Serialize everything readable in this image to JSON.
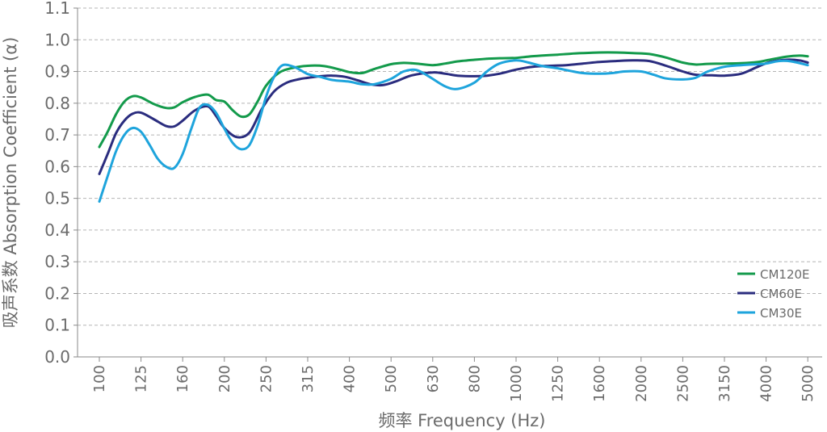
{
  "chart_data": {
    "type": "line",
    "xlabel": "频率 Frequency (Hz)",
    "ylabel": "吸声系数 Absorption Coefficient (α)",
    "x_categories": [
      "100",
      "125",
      "160",
      "200",
      "250",
      "315",
      "400",
      "500",
      "630",
      "800",
      "1000",
      "1250",
      "1600",
      "2000",
      "2500",
      "3150",
      "4000",
      "5000"
    ],
    "yticks": [
      "0.0",
      "0.1",
      "0.2",
      "0.3",
      "0.4",
      "0.5",
      "0.6",
      "0.7",
      "0.8",
      "0.9",
      "1.0",
      "1.1"
    ],
    "ylim": [
      0.0,
      1.1
    ],
    "grid": "horizontal-dashed",
    "legend_position": "right",
    "series": [
      {
        "name": "CM120E",
        "color": "#139a4b",
        "x": [
          0,
          0.2,
          0.4,
          0.6,
          0.8,
          1,
          1.3,
          1.6,
          1.8,
          2,
          2.3,
          2.6,
          2.8,
          3,
          3.2,
          3.4,
          3.6,
          3.8,
          4,
          4.3,
          4.6,
          5,
          5.4,
          5.8,
          6,
          6.3,
          6.6,
          7,
          7.3,
          7.6,
          8,
          8.3,
          8.6,
          9,
          9.3,
          9.6,
          10,
          10.3,
          10.6,
          11,
          11.3,
          11.6,
          12,
          12.4,
          12.8,
          13.2,
          13.6,
          14,
          14.3,
          14.6,
          15,
          15.4,
          15.8,
          16,
          16.2,
          16.5,
          16.8,
          17
        ],
        "values": [
          0.662,
          0.71,
          0.765,
          0.805,
          0.822,
          0.818,
          0.798,
          0.785,
          0.787,
          0.803,
          0.82,
          0.827,
          0.81,
          0.805,
          0.778,
          0.758,
          0.765,
          0.806,
          0.855,
          0.895,
          0.91,
          0.918,
          0.917,
          0.905,
          0.898,
          0.895,
          0.908,
          0.923,
          0.927,
          0.925,
          0.92,
          0.925,
          0.932,
          0.937,
          0.94,
          0.942,
          0.943,
          0.947,
          0.95,
          0.953,
          0.956,
          0.958,
          0.96,
          0.96,
          0.958,
          0.955,
          0.944,
          0.928,
          0.922,
          0.924,
          0.925,
          0.926,
          0.93,
          0.935,
          0.94,
          0.947,
          0.95,
          0.948
        ]
      },
      {
        "name": "CM60E",
        "color": "#2a2c7e",
        "x": [
          0,
          0.2,
          0.4,
          0.6,
          0.8,
          1,
          1.3,
          1.6,
          1.8,
          2,
          2.3,
          2.6,
          2.8,
          3,
          3.3,
          3.6,
          3.9,
          4.2,
          4.5,
          4.8,
          5,
          5.3,
          5.6,
          5.9,
          6.2,
          6.5,
          6.8,
          7.1,
          7.5,
          8,
          8.3,
          8.6,
          9,
          9.3,
          9.6,
          10,
          10.4,
          10.8,
          11.2,
          11.6,
          12,
          12.4,
          12.8,
          13.2,
          13.6,
          14,
          14.3,
          14.7,
          15,
          15.4,
          15.8,
          16.1,
          16.5,
          16.8,
          17
        ],
        "values": [
          0.577,
          0.64,
          0.705,
          0.745,
          0.767,
          0.77,
          0.75,
          0.728,
          0.727,
          0.745,
          0.778,
          0.79,
          0.76,
          0.722,
          0.693,
          0.707,
          0.782,
          0.838,
          0.865,
          0.876,
          0.88,
          0.885,
          0.887,
          0.883,
          0.872,
          0.86,
          0.857,
          0.868,
          0.888,
          0.897,
          0.893,
          0.887,
          0.885,
          0.887,
          0.893,
          0.906,
          0.915,
          0.918,
          0.92,
          0.925,
          0.93,
          0.933,
          0.935,
          0.933,
          0.918,
          0.9,
          0.89,
          0.888,
          0.887,
          0.893,
          0.915,
          0.93,
          0.937,
          0.935,
          0.928
        ]
      },
      {
        "name": "CM30E",
        "color": "#1ea4dc",
        "x": [
          0,
          0.2,
          0.4,
          0.6,
          0.8,
          1,
          1.2,
          1.4,
          1.6,
          1.8,
          2,
          2.2,
          2.4,
          2.6,
          2.8,
          3,
          3.2,
          3.4,
          3.6,
          3.8,
          4,
          4.2,
          4.4,
          4.7,
          5,
          5.3,
          5.6,
          6,
          6.3,
          6.6,
          7,
          7.3,
          7.6,
          7.9,
          8.3,
          8.6,
          9,
          9.3,
          9.6,
          10,
          10.3,
          10.6,
          11,
          11.3,
          11.6,
          12,
          12.3,
          12.6,
          13,
          13.3,
          13.6,
          14,
          14.3,
          14.6,
          15,
          15.4,
          15.8,
          16,
          16.3,
          16.6,
          17
        ],
        "values": [
          0.49,
          0.57,
          0.648,
          0.7,
          0.722,
          0.71,
          0.67,
          0.625,
          0.6,
          0.596,
          0.64,
          0.717,
          0.785,
          0.795,
          0.77,
          0.72,
          0.675,
          0.655,
          0.668,
          0.73,
          0.82,
          0.885,
          0.92,
          0.913,
          0.892,
          0.883,
          0.873,
          0.868,
          0.86,
          0.86,
          0.877,
          0.9,
          0.905,
          0.885,
          0.853,
          0.845,
          0.865,
          0.9,
          0.925,
          0.935,
          0.928,
          0.918,
          0.91,
          0.902,
          0.895,
          0.893,
          0.895,
          0.9,
          0.9,
          0.89,
          0.878,
          0.875,
          0.88,
          0.9,
          0.915,
          0.92,
          0.923,
          0.925,
          0.933,
          0.932,
          0.92
        ]
      }
    ]
  }
}
